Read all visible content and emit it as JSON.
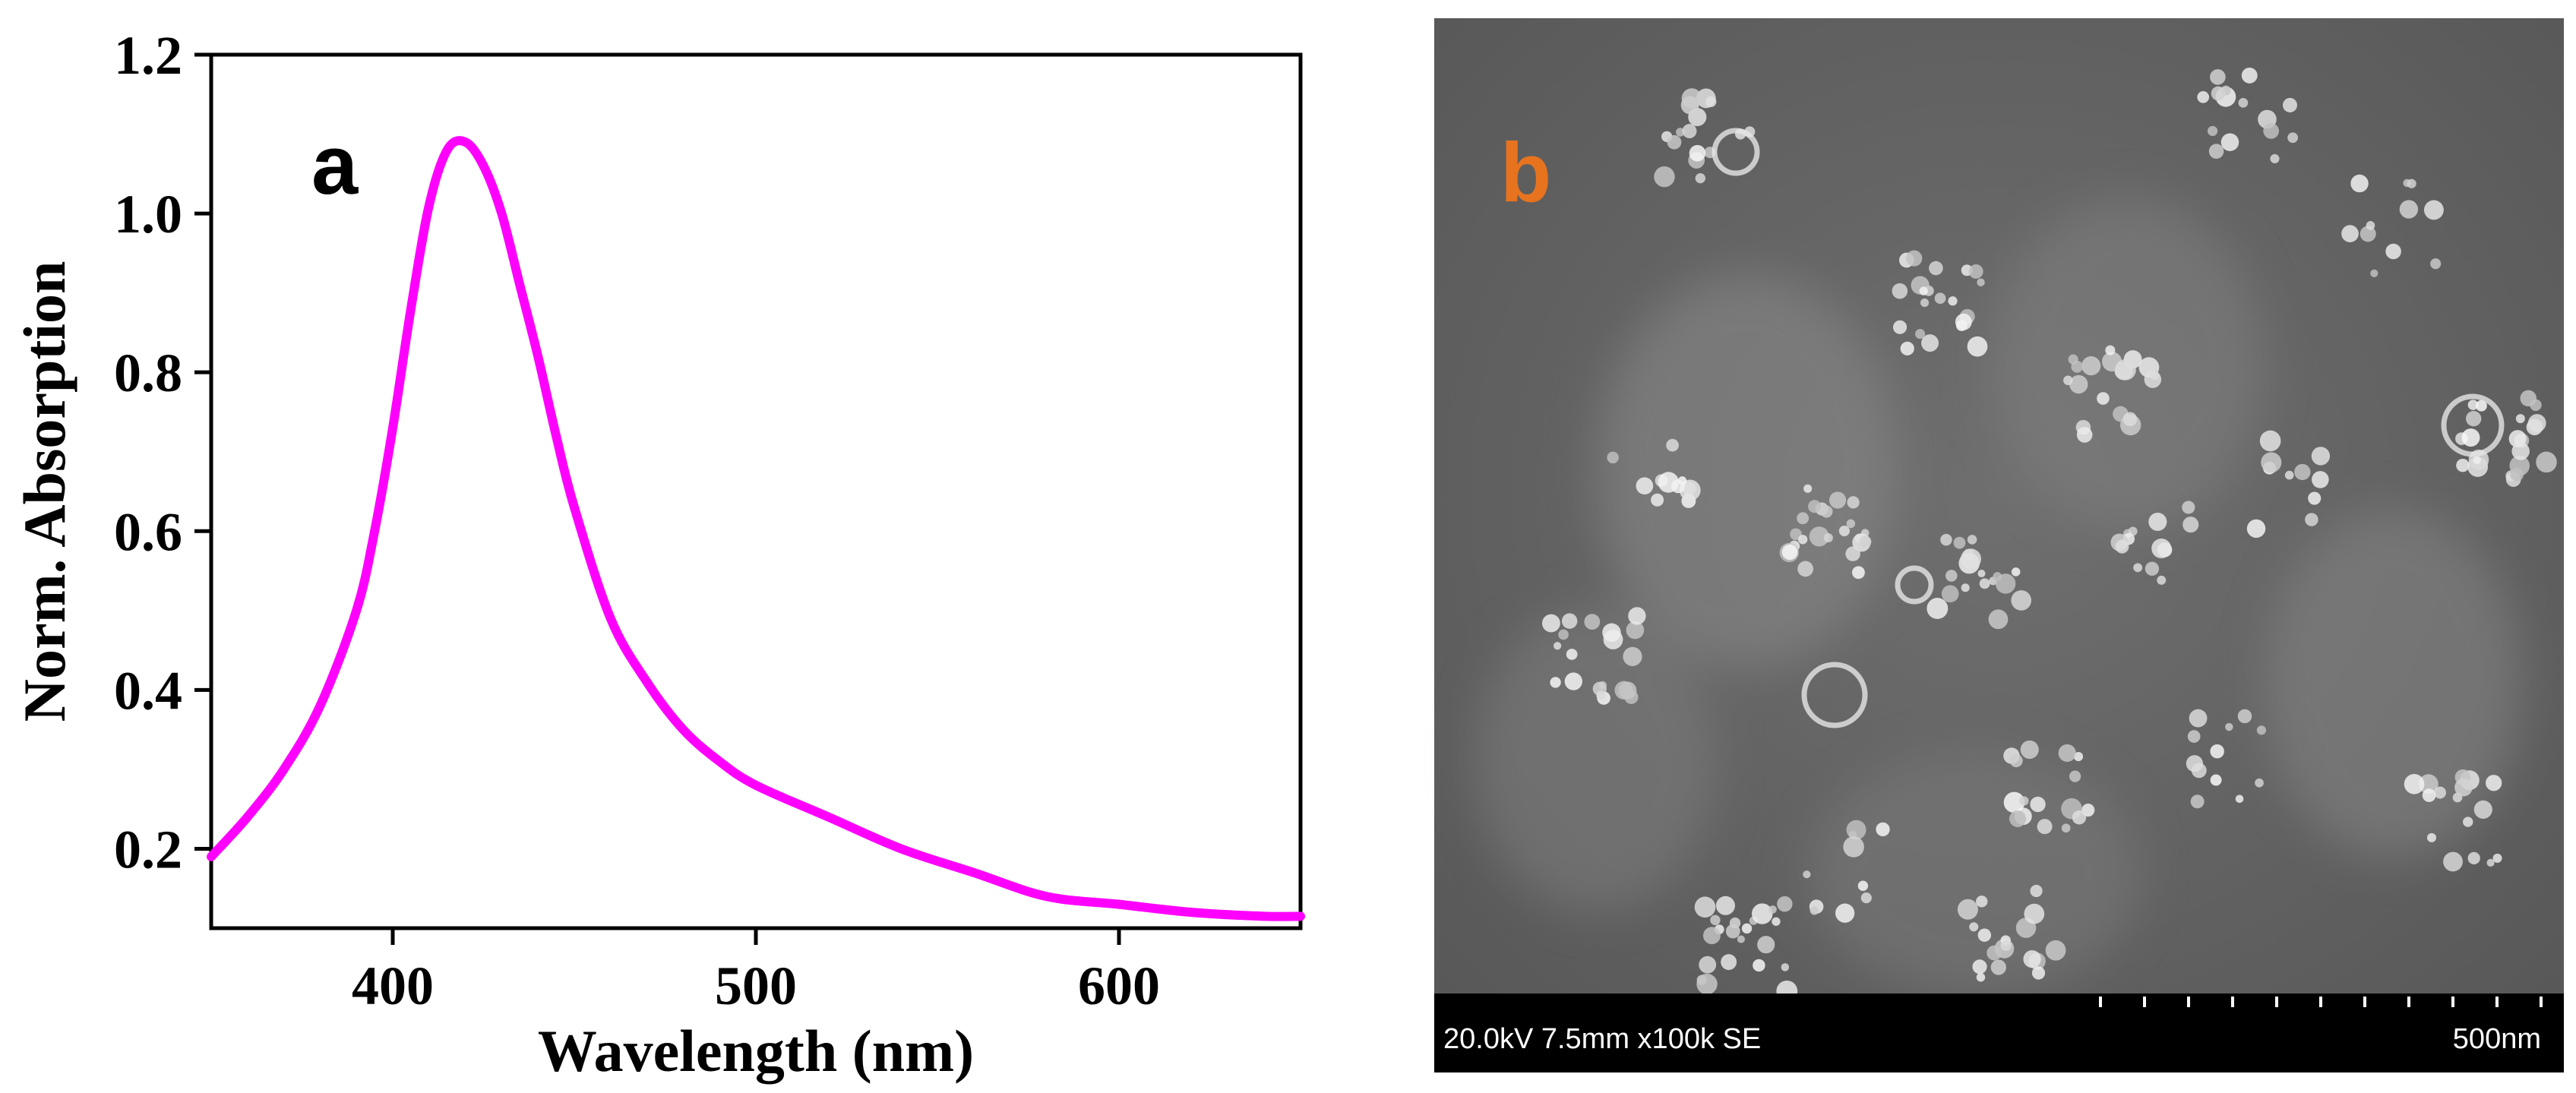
{
  "chart_data": {
    "type": "line",
    "title": "",
    "xlabel": "Wavelength (nm)",
    "ylabel": "Norm. Absorption",
    "xlim": [
      350,
      650
    ],
    "ylim": [
      0.1,
      1.2
    ],
    "x_ticks": [
      400,
      500,
      600
    ],
    "y_ticks": [
      0.2,
      0.4,
      0.6,
      0.8,
      1.0,
      1.2
    ],
    "x_tick_labels": [
      "400",
      "500",
      "600"
    ],
    "y_tick_labels": [
      "0.2",
      "0.4",
      "0.6",
      "0.8",
      "1.0",
      "1.2"
    ],
    "grid": false,
    "series": [
      {
        "color": "#ff00ff",
        "x": [
          350,
          360,
          370,
          380,
          390,
          395,
          400,
          405,
          410,
          415,
          420,
          425,
          430,
          435,
          440,
          445,
          450,
          460,
          470,
          480,
          490,
          500,
          520,
          540,
          560,
          580,
          600,
          620,
          640,
          650
        ],
        "y": [
          0.19,
          0.24,
          0.3,
          0.38,
          0.5,
          0.6,
          0.73,
          0.88,
          1.01,
          1.08,
          1.09,
          1.06,
          1.0,
          0.91,
          0.82,
          0.72,
          0.63,
          0.49,
          0.41,
          0.35,
          0.31,
          0.28,
          0.24,
          0.2,
          0.17,
          0.14,
          0.13,
          0.12,
          0.115,
          0.115
        ]
      }
    ]
  },
  "panels": {
    "left_letter": "a",
    "right_letter": "b",
    "right_letter_color": "#e8731f"
  },
  "sem": {
    "info": "20.0kV 7.5mm x100k SE",
    "scale": "500nm"
  }
}
